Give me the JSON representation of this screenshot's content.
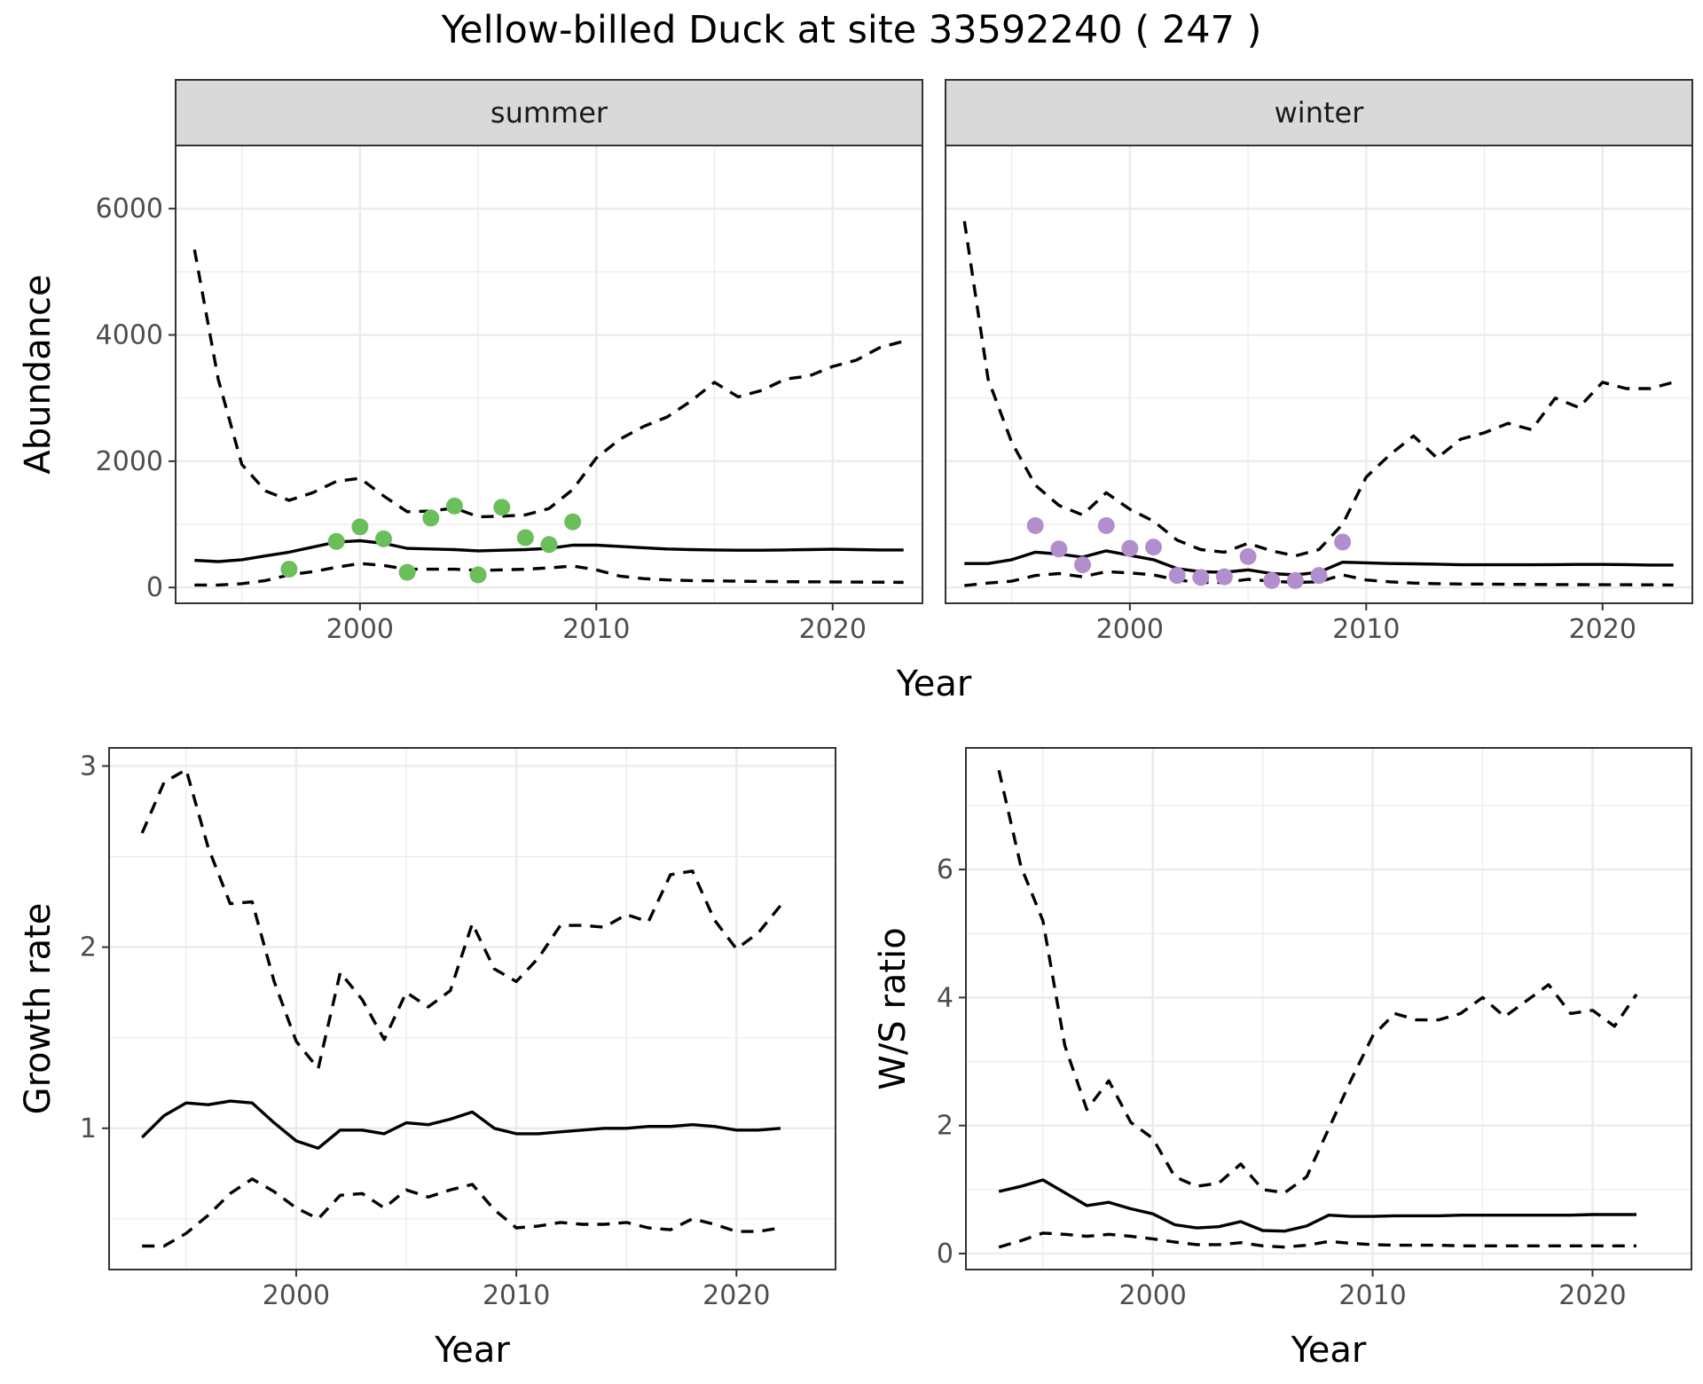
{
  "title": "Yellow-billed Duck at site 33592240 ( 247 )",
  "colors": {
    "summer_points": "#6abf5a",
    "winter_points": "#b28fcc",
    "lines": "#000000"
  },
  "chart_data": [
    {
      "id": "summer",
      "type": "line",
      "facet": "summer",
      "xlabel": "",
      "ylabel": "Abundance",
      "xlim": [
        1992.2,
        2023.8
      ],
      "ylim": [
        -250,
        7000
      ],
      "xticks": [
        2000,
        2010,
        2020
      ],
      "yticks": [
        0,
        2000,
        4000,
        6000
      ],
      "grid": true,
      "x": [
        1993,
        1994,
        1995,
        1996,
        1997,
        1998,
        1999,
        2000,
        2001,
        2002,
        2003,
        2004,
        2005,
        2006,
        2007,
        2008,
        2009,
        2010,
        2011,
        2012,
        2013,
        2014,
        2015,
        2016,
        2017,
        2018,
        2019,
        2020,
        2021,
        2022,
        2023
      ],
      "series": [
        {
          "values": [
            430,
            410,
            440,
            500,
            560,
            640,
            720,
            740,
            700,
            620,
            610,
            600,
            580,
            590,
            600,
            620,
            670,
            670,
            650,
            630,
            610,
            600,
            595,
            590,
            590,
            595,
            600,
            605,
            600,
            595,
            595
          ]
        },
        {
          "values": [
            5350,
            3300,
            1950,
            1530,
            1380,
            1500,
            1680,
            1730,
            1450,
            1200,
            1210,
            1260,
            1120,
            1130,
            1150,
            1250,
            1550,
            2050,
            2350,
            2550,
            2700,
            2950,
            3250,
            3020,
            3120,
            3300,
            3350,
            3500,
            3600,
            3800,
            3900
          ]
        },
        {
          "values": [
            40,
            40,
            60,
            110,
            200,
            250,
            320,
            380,
            350,
            290,
            290,
            290,
            270,
            280,
            290,
            310,
            340,
            280,
            180,
            140,
            120,
            110,
            105,
            100,
            95,
            92,
            90,
            88,
            86,
            84,
            82
          ]
        }
      ],
      "points": {
        "x": [
          1997,
          1999,
          2000,
          2001,
          2002,
          2003,
          2004,
          2005,
          2006,
          2007,
          2008,
          2009
        ],
        "y": [
          290,
          730,
          960,
          770,
          240,
          1100,
          1290,
          200,
          1270,
          790,
          680,
          1040
        ]
      }
    },
    {
      "id": "winter",
      "type": "line",
      "facet": "winter",
      "xlabel": "",
      "ylabel": "",
      "xlim": [
        1992.2,
        2023.8
      ],
      "ylim": [
        -250,
        7000
      ],
      "xticks": [
        2000,
        2010,
        2020
      ],
      "yticks": [
        0,
        2000,
        4000,
        6000
      ],
      "grid": true,
      "x": [
        1993,
        1994,
        1995,
        1996,
        1997,
        1998,
        1999,
        2000,
        2001,
        2002,
        2003,
        2004,
        2005,
        2006,
        2007,
        2008,
        2009,
        2010,
        2011,
        2012,
        2013,
        2014,
        2015,
        2016,
        2017,
        2018,
        2019,
        2020,
        2021,
        2022,
        2023
      ],
      "series": [
        {
          "values": [
            380,
            380,
            440,
            560,
            530,
            480,
            580,
            510,
            440,
            300,
            250,
            240,
            280,
            220,
            200,
            240,
            400,
            390,
            380,
            375,
            370,
            360,
            360,
            360,
            360,
            362,
            365,
            365,
            362,
            355,
            355
          ]
        },
        {
          "values": [
            5800,
            3300,
            2300,
            1620,
            1300,
            1150,
            1500,
            1240,
            1050,
            750,
            600,
            560,
            700,
            580,
            500,
            600,
            1000,
            1750,
            2100,
            2400,
            2050,
            2350,
            2450,
            2600,
            2500,
            3000,
            2850,
            3250,
            3150,
            3150,
            3250
          ]
        },
        {
          "values": [
            30,
            70,
            100,
            190,
            220,
            170,
            250,
            230,
            200,
            120,
            80,
            80,
            130,
            100,
            80,
            90,
            200,
            120,
            90,
            70,
            60,
            55,
            55,
            50,
            48,
            46,
            45,
            44,
            43,
            42,
            40
          ]
        }
      ],
      "points": {
        "x": [
          1996,
          1997,
          1998,
          1999,
          2000,
          2001,
          2002,
          2003,
          2004,
          2005,
          2006,
          2007,
          2008,
          2009
        ],
        "y": [
          980,
          610,
          360,
          980,
          620,
          640,
          190,
          160,
          170,
          490,
          110,
          110,
          190,
          720
        ]
      }
    },
    {
      "id": "growth",
      "type": "line",
      "xlabel": "Year",
      "ylabel": "Growth rate",
      "xlim": [
        1991.5,
        2024.5
      ],
      "ylim": [
        0.22,
        3.1
      ],
      "xticks": [
        2000,
        2010,
        2020
      ],
      "yticks": [
        1,
        2,
        3
      ],
      "grid": true,
      "x": [
        1993,
        1994,
        1995,
        1996,
        1997,
        1998,
        1999,
        2000,
        2001,
        2002,
        2003,
        2004,
        2005,
        2006,
        2007,
        2008,
        2009,
        2010,
        2011,
        2012,
        2013,
        2014,
        2015,
        2016,
        2017,
        2018,
        2019,
        2020,
        2021,
        2022
      ],
      "series": [
        {
          "values": [
            0.95,
            1.07,
            1.14,
            1.13,
            1.15,
            1.14,
            1.03,
            0.93,
            0.89,
            0.99,
            0.99,
            0.97,
            1.03,
            1.02,
            1.05,
            1.09,
            1.0,
            0.97,
            0.97,
            0.98,
            0.99,
            1.0,
            1.0,
            1.01,
            1.01,
            1.02,
            1.01,
            0.99,
            0.99,
            1.0
          ]
        },
        {
          "values": [
            2.63,
            2.91,
            2.98,
            2.55,
            2.24,
            2.25,
            1.81,
            1.48,
            1.33,
            1.86,
            1.71,
            1.49,
            1.75,
            1.67,
            1.76,
            2.13,
            1.88,
            1.81,
            1.94,
            2.12,
            2.12,
            2.11,
            2.18,
            2.14,
            2.4,
            2.42,
            2.15,
            1.99,
            2.08,
            2.23
          ]
        },
        {
          "values": [
            0.35,
            0.35,
            0.42,
            0.52,
            0.64,
            0.72,
            0.65,
            0.56,
            0.5,
            0.63,
            0.64,
            0.56,
            0.66,
            0.62,
            0.66,
            0.69,
            0.55,
            0.45,
            0.46,
            0.48,
            0.47,
            0.47,
            0.48,
            0.45,
            0.44,
            0.5,
            0.47,
            0.43,
            0.43,
            0.45
          ]
        }
      ]
    },
    {
      "id": "ws",
      "type": "line",
      "xlabel": "Year",
      "ylabel": "W/S ratio",
      "xlim": [
        1991.5,
        2024.5
      ],
      "ylim": [
        -0.25,
        7.9
      ],
      "xticks": [
        2000,
        2010,
        2020
      ],
      "yticks": [
        0,
        2,
        4,
        6
      ],
      "grid": true,
      "x": [
        1993,
        1994,
        1995,
        1996,
        1997,
        1998,
        1999,
        2000,
        2001,
        2002,
        2003,
        2004,
        2005,
        2006,
        2007,
        2008,
        2009,
        2010,
        2011,
        2012,
        2013,
        2014,
        2015,
        2016,
        2017,
        2018,
        2019,
        2020,
        2021,
        2022
      ],
      "series": [
        {
          "values": [
            0.97,
            1.05,
            1.15,
            0.95,
            0.75,
            0.8,
            0.7,
            0.62,
            0.45,
            0.4,
            0.42,
            0.5,
            0.36,
            0.35,
            0.43,
            0.6,
            0.58,
            0.58,
            0.59,
            0.59,
            0.59,
            0.6,
            0.6,
            0.6,
            0.6,
            0.6,
            0.6,
            0.61,
            0.61,
            0.61
          ]
        },
        {
          "values": [
            7.55,
            6.05,
            5.2,
            3.25,
            2.25,
            2.7,
            2.05,
            1.8,
            1.2,
            1.05,
            1.1,
            1.4,
            1.0,
            0.95,
            1.2,
            1.95,
            2.7,
            3.4,
            3.75,
            3.65,
            3.65,
            3.75,
            4.0,
            3.7,
            3.95,
            4.2,
            3.75,
            3.8,
            3.55,
            4.05
          ]
        },
        {
          "values": [
            0.1,
            0.2,
            0.32,
            0.3,
            0.27,
            0.3,
            0.27,
            0.23,
            0.18,
            0.14,
            0.14,
            0.17,
            0.12,
            0.1,
            0.13,
            0.19,
            0.16,
            0.14,
            0.13,
            0.13,
            0.13,
            0.12,
            0.12,
            0.12,
            0.12,
            0.12,
            0.12,
            0.12,
            0.12,
            0.12
          ]
        }
      ]
    }
  ]
}
